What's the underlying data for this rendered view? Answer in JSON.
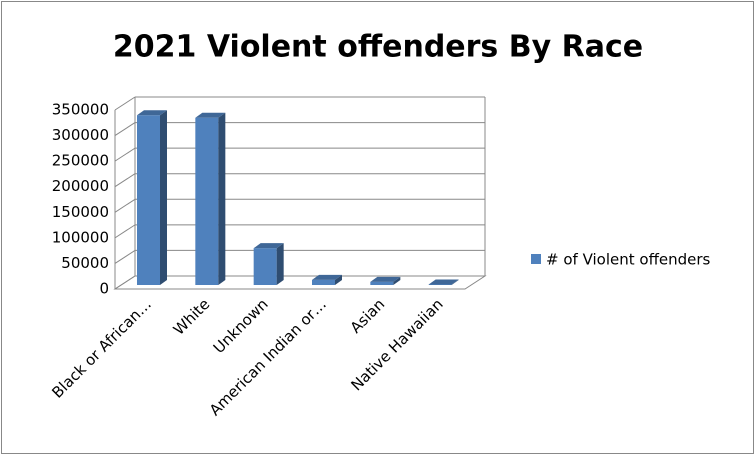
{
  "chart_data": {
    "type": "bar3d",
    "title": "2021 Violent offenders By Race",
    "categories": [
      "Black or African…",
      "White",
      "Unknown",
      "American Indian or…",
      "Asian",
      "Native Hawaiian"
    ],
    "series": [
      {
        "name": "# of Violent offenders",
        "color": "#4f81bd",
        "values": [
          332000,
          327000,
          72000,
          10000,
          6000,
          1000
        ]
      }
    ],
    "ylim": [
      0,
      350000
    ],
    "yticks": [
      0,
      50000,
      100000,
      150000,
      200000,
      250000,
      300000,
      350000
    ],
    "grid": true,
    "legend": "right"
  }
}
